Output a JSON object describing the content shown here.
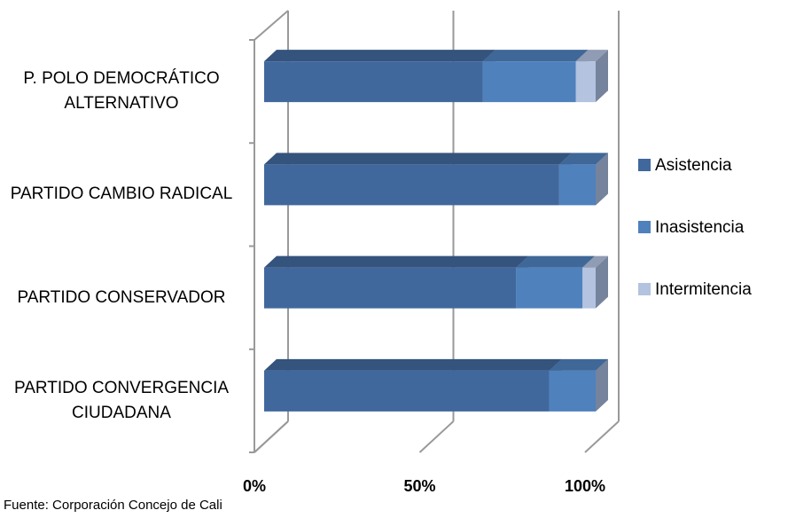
{
  "chart_data": {
    "type": "bar3d_stacked_horizontal",
    "categories": [
      "P. POLO DEMOCRÁTICO ALTERNATIVO",
      "PARTIDO CAMBIO RADICAL",
      "PARTIDO CONSERVADOR",
      "PARTIDO CONVERGENCIA CIUDADANA"
    ],
    "series": [
      {
        "name": "Asistencia",
        "color": "#41689d",
        "values": [
          66,
          89,
          76,
          86
        ]
      },
      {
        "name": "Inasistencia",
        "color": "#4f81bd",
        "values": [
          28,
          11,
          20,
          14
        ]
      },
      {
        "name": "Intermitencia",
        "color": "#b3c3e0",
        "values": [
          6,
          0,
          4,
          0
        ]
      }
    ],
    "xlim": [
      0,
      100
    ],
    "xticks": [
      {
        "value": 0,
        "label": "0%"
      },
      {
        "value": 50,
        "label": "50%"
      },
      {
        "value": 100,
        "label": "100%"
      }
    ],
    "grid": true,
    "legend": "right",
    "source": "Fuente: Corporación Concejo de Cali"
  }
}
